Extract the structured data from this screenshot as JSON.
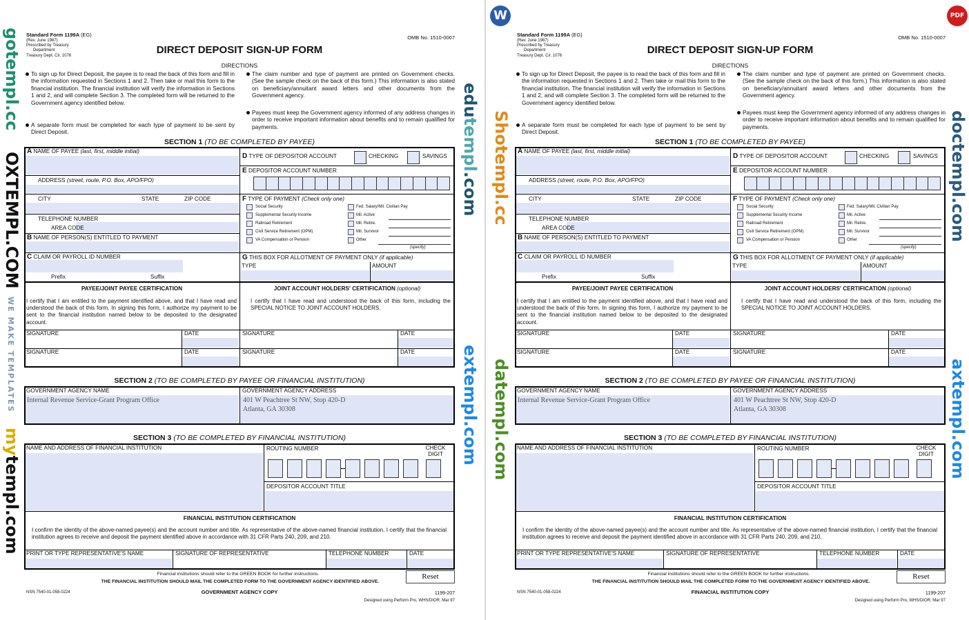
{
  "form": {
    "header": {
      "form_id": "Standard Form 1199A",
      "form_variant": "(EG)",
      "rev": "(Rev. June 1987)",
      "prescribed": "Prescribed by Treasury",
      "department": "Department",
      "circular": "Treasury Dept. Cir. 1076",
      "omb": "OMB No. 1510-0007",
      "title": "DIRECT DEPOSIT SIGN-UP FORM",
      "directions": "DIRECTIONS"
    },
    "bullets_left": [
      "To sign up for Direct Deposit, the payee is to read the back of this form and fill in the information requested in Sections 1 and 2. Then take or mail this form to the financial institution. The financial institution will verify the information in Sections 1 and 2, and will complete Section 3. The completed form will be returned to the Government agency identified below.",
      "A separate form must be completed for each type of payment to be sent by Direct Deposit."
    ],
    "bullets_right": [
      "The claim number and type of payment are printed on Government checks. (See the sample check on the back of this form.) This information is also stated on beneficiary/annuitant award letters and other documents from the Government agency.",
      "Payees must keep the Government agency informed of any address changes in order to receive important information about benefits and to remain qualified for payments."
    ],
    "section1": {
      "title": "SECTION 1",
      "subtitle": "(TO BE COMPLETED BY PAYEE)",
      "a_letter": "A",
      "a_label": "NAME OF PAYEE",
      "a_hint": "(last, first, middle initial)",
      "address_label": "ADDRESS",
      "address_hint": "(street, route, P.O. Box, APO/FPO)",
      "city_label": "CITY",
      "state_label": "STATE",
      "zip_label": "ZIP CODE",
      "telephone_label": "TELEPHONE NUMBER",
      "area_code_label": "AREA CODE",
      "b_letter": "B",
      "b_label": "NAME OF PERSON(S) ENTITLED TO PAYMENT",
      "c_letter": "C",
      "c_label": "CLAIM OR PAYROLL ID NUMBER",
      "prefix_label": "Prefix",
      "suffix_label": "Suffix",
      "d_letter": "D",
      "d_label": "TYPE OF DEPOSITOR ACCOUNT",
      "checking_label": "CHECKING",
      "savings_label": "SAVINGS",
      "e_letter": "E",
      "e_label": "DEPOSITOR ACCOUNT NUMBER",
      "f_letter": "F",
      "f_label": "TYPE OF PAYMENT",
      "f_hint": "(Check only one)",
      "payment_types_left": [
        "Social Security",
        "Supplemental Security Income",
        "Railroad Retirement",
        "Civil Service Retirement (OPM)",
        "VA Compensation or Pension"
      ],
      "payment_types_right": [
        "Fed. Salary/Mil. Civilian Pay",
        "Mil. Active",
        "Mil. Retire.",
        "Mil. Survivor",
        "Other"
      ],
      "specify_label": "(specify)",
      "g_letter": "G",
      "g_label": "THIS BOX FOR ALLOTMENT OF PAYMENT ONLY",
      "g_hint": "(if applicable)",
      "type_label": "TYPE",
      "amount_label": "AMOUNT",
      "payee_cert_title": "PAYEE/JOINT PAYEE CERTIFICATION",
      "payee_cert_text": "I certify that I am entitled to the payment identified above, and that I have read and understood the back of this form. In signing this form, I authorize my payment to be sent to the financial institution named below to be deposited to the designated account.",
      "joint_cert_title": "JOINT ACCOUNT HOLDERS' CERTIFICATION",
      "joint_cert_hint": "(optional)",
      "joint_cert_text": "I certify that I have read and understood the back of this form, including the SPECIAL NOTICE TO JOINT ACCOUNT HOLDERS.",
      "signature_label": "SIGNATURE",
      "date_label": "DATE"
    },
    "section2": {
      "title": "SECTION 2",
      "subtitle": "(TO BE COMPLETED BY PAYEE OR FINANCIAL INSTITUTION)",
      "agency_name_label": "GOVERNMENT AGENCY NAME",
      "agency_name_value": "Internal Revenue Service-Grant Program Office",
      "agency_address_label": "GOVERNMENT AGENCY ADDRESS",
      "agency_address_line1": "401 W Peachtree St NW, Stop 420-D",
      "agency_address_line2": "Atlanta, GA 30308"
    },
    "section3": {
      "title": "SECTION 3",
      "subtitle": "(TO BE COMPLETED BY FINANCIAL INSTITUTION)",
      "fi_name_label": "NAME AND ADDRESS OF FINANCIAL INSTITUTION",
      "routing_label": "ROUTING NUMBER",
      "check_digit_label": "CHECK DIGIT",
      "account_title_label": "DEPOSITOR ACCOUNT TITLE",
      "fi_cert_title": "FINANCIAL INSTITUTION CERTIFICATION",
      "fi_cert_text": "I confirm the identity of the above-named payee(s) and the account number and title. As representative of the above-named financial institution, I certify that the financial institution agrees to receive and deposit the payment identified above in accordance with 31 CFR Parts 240, 209, and 210.",
      "rep_name_label": "PRINT OR TYPE REPRESENTATIVE'S NAME",
      "rep_signature_label": "SIGNATURE OF REPRESENTATIVE",
      "telephone_label": "TELEPHONE NUMBER",
      "date_label": "DATE"
    },
    "footer": {
      "green_book": "Financial institutions should refer to the GREEN BOOK for further instructions.",
      "mail_notice": "THE FINANCIAL INSTITUTION SHOULD MAIL THE COMPLETED FORM TO THE GOVERNMENT AGENCY IDENTIFIED ABOVE.",
      "reset_label": "Reset",
      "form_number": "1199-207",
      "designed_by": "Designed using Perform Pro, WHS/DIOR, Mar 97"
    }
  },
  "pages": [
    {
      "nsn": "NSN 7540-01-058-0224",
      "copy_label": "GOVERNMENT AGENCY COPY"
    },
    {
      "nsn": "NSN 7540-01-058-0224",
      "copy_label": "FINANCIAL INSTITUTION COPY"
    }
  ],
  "watermarks": {
    "gotempl": "gotempl.cc",
    "oxtempl": "OXTEMPL.COM",
    "oxtempl_tag": "WE MAKE TEMPLATES",
    "mytempl_a": "my",
    "mytempl_b": "templ.com",
    "edutempl_a": "edu",
    "edutempl_b": "templ",
    "edutempl_c": ".com",
    "extempl_a": "extempl",
    "extempl_b": ".com",
    "word_badge": "W",
    "pdf_badge": "PDF",
    "shotempl": "Shotempl.cc",
    "datempl": "datempl.com",
    "doctempl": "doctempl.com",
    "axtempl": "axtempl.com",
    "colors": {
      "word": "#2b5cab",
      "pdf": "#d01c1c",
      "gotempl_go": "#1e8f6e",
      "gotempl_rest": "#f05a46",
      "mytempl": "#f5c400",
      "edutempl_dark": "#1f5570",
      "edutempl_light": "#7ecad0",
      "extempl": "#1e88e5"
    }
  }
}
